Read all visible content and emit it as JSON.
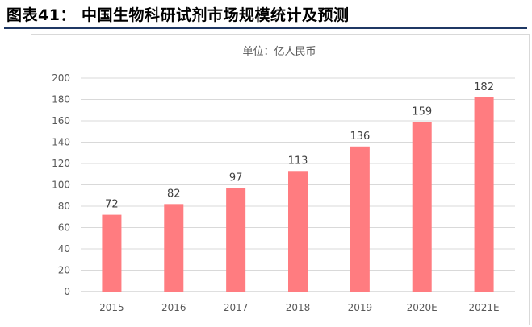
{
  "header": {
    "title": "图表41：  中国生物科研试剂市场规模统计及预测"
  },
  "chart_data": {
    "type": "bar",
    "title": "图表41：  中国生物科研试剂市场规模统计及预测",
    "subtitle": "单位：亿人民币",
    "categories": [
      "2015",
      "2016",
      "2017",
      "2018",
      "2019",
      "2020E",
      "2021E"
    ],
    "series": [
      {
        "name": "市场规模",
        "values": [
          72,
          82,
          97,
          113,
          136,
          159,
          182
        ]
      }
    ],
    "ylim": [
      0,
      200
    ],
    "yticks": [
      0,
      20,
      40,
      60,
      80,
      100,
      120,
      140,
      160,
      180,
      200
    ],
    "xlabel": "",
    "ylabel": "",
    "grid": true,
    "bar_color": "#ff7c80"
  }
}
